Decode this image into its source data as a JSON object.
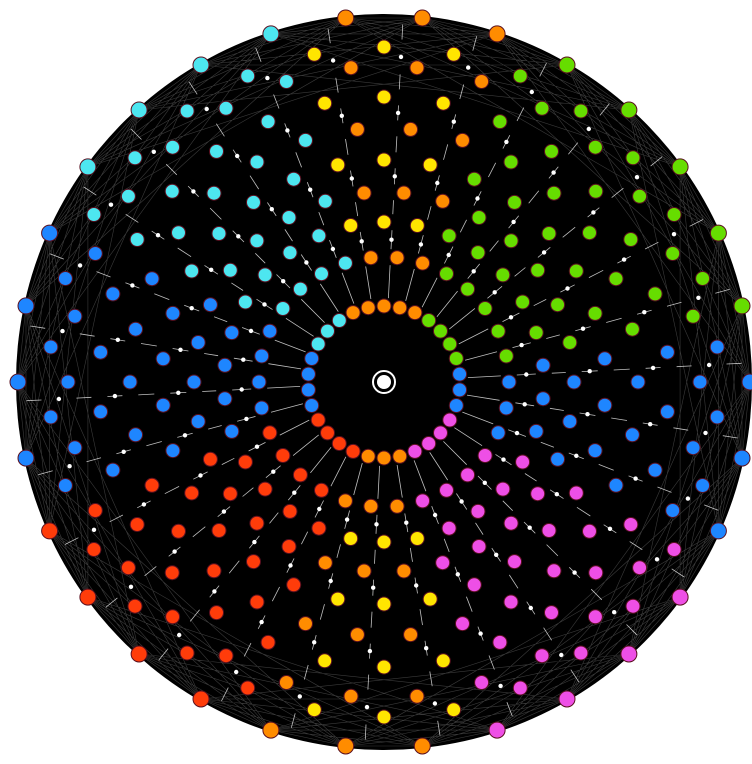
{
  "diagram": {
    "type": "polytope-petrie-projection",
    "background": "#ffffff",
    "disk_fill": "#000000",
    "edge_color": "#000000",
    "spoke_color": "#ffffff",
    "node_stroke": "#5a1020",
    "center_node": {
      "fill": "#ffffff",
      "ring": "#ffffff"
    },
    "palette": {
      "yellow": "#ffe500",
      "orange": "#ff8c00",
      "red": "#ff3c0a",
      "blue": "#1e86ff",
      "cyan": "#4de6f0",
      "green": "#66dd00",
      "magenta": "#ee4fe6"
    },
    "ring_count": 10,
    "nodes_per_ring": 30
  }
}
